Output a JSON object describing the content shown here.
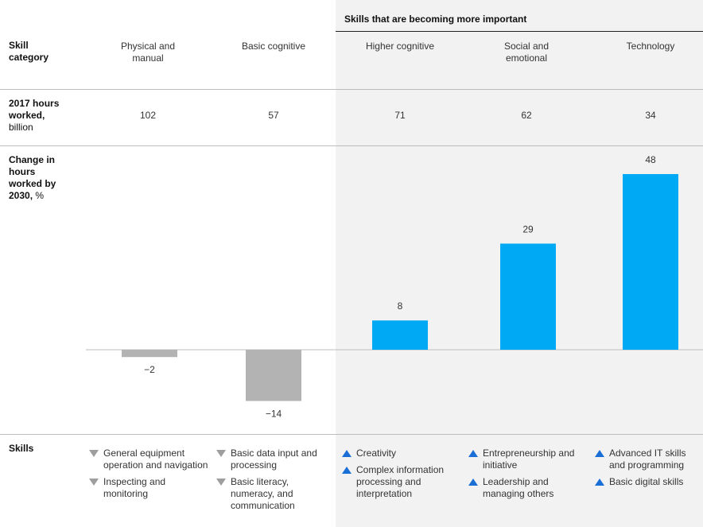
{
  "header": {
    "important_title": "Skills that are becoming more important"
  },
  "rows": {
    "skill_category": "Skill\ncategory",
    "hours_bold": "2017 hours worked,",
    "hours_unit": "billion",
    "change_bold": "Change in hours worked by 2030,",
    "change_unit": "%",
    "skills": "Skills"
  },
  "columns": [
    {
      "label": "Physical and\nmanual",
      "hours": "102"
    },
    {
      "label": "Basic cognitive",
      "hours": "57"
    },
    {
      "label": "Higher cognitive",
      "hours": "71"
    },
    {
      "label": "Social and\nemotional",
      "hours": "62"
    },
    {
      "label": "Technology",
      "hours": "34"
    }
  ],
  "chart_data": {
    "type": "bar",
    "categories": [
      "Physical and manual",
      "Basic cognitive",
      "Higher cognitive",
      "Social and emotional",
      "Technology"
    ],
    "values": [
      -2,
      -14,
      8,
      29,
      48
    ],
    "value_labels": [
      "−2",
      "−14",
      "8",
      "29",
      "48"
    ],
    "ylim": [
      -14,
      48
    ],
    "colors": {
      "decline": "#b3b3b3",
      "growth": "#00a9f4"
    }
  },
  "skills": [
    {
      "direction": "down",
      "items": [
        "General equipment operation and navigation",
        "Inspecting and monitoring"
      ]
    },
    {
      "direction": "down",
      "items": [
        "Basic data input and processing",
        "Basic literacy, numeracy, and communication"
      ]
    },
    {
      "direction": "up",
      "items": [
        "Creativity",
        "Complex information processing and interpretation"
      ]
    },
    {
      "direction": "up",
      "items": [
        "Entrepreneurship and initiative",
        "Leadership and managing others"
      ]
    },
    {
      "direction": "up",
      "items": [
        "Advanced IT skills and programming",
        "Basic digital skills"
      ]
    }
  ],
  "colors": {
    "down_arrow": "#9e9e9e",
    "up_arrow": "#1a6fd6",
    "shade": "#f2f2f2"
  }
}
